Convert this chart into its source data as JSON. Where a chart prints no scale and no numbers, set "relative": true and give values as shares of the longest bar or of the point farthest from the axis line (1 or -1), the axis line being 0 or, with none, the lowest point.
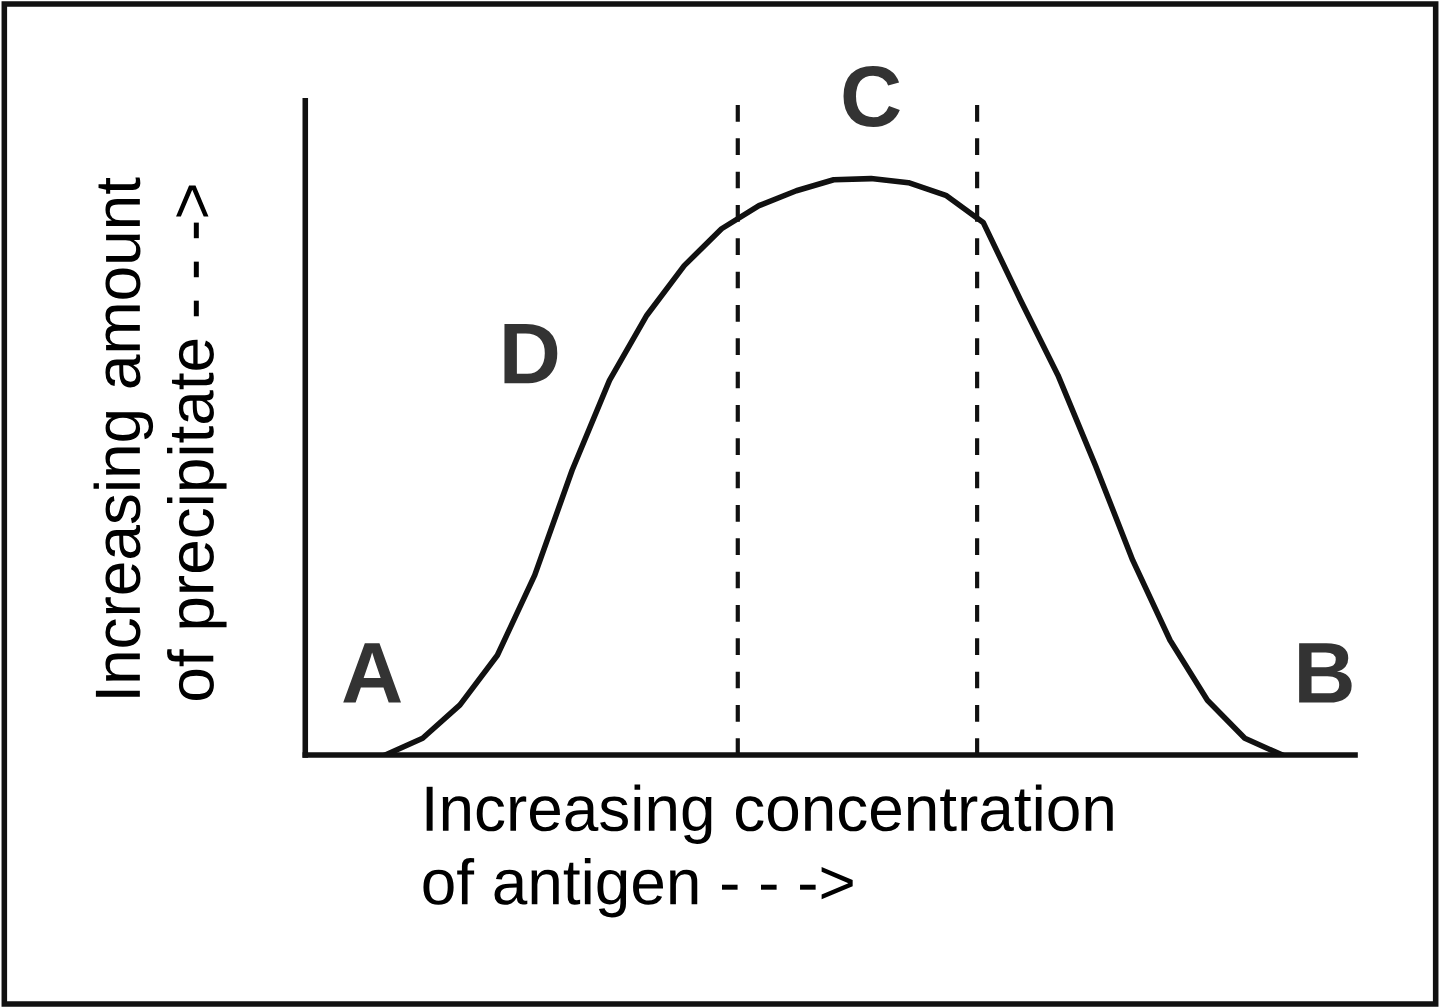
{
  "chart_data": {
    "type": "line",
    "relative": true,
    "xlabel": "Increasing concentration\nof antigen - - ->",
    "ylabel": "Increasing amount\nof precipitate - - ->",
    "categories": [
      null,
      null,
      null,
      null,
      null,
      null,
      null,
      null,
      null,
      null,
      null,
      null,
      null,
      null,
      null,
      null,
      null,
      null,
      null,
      null,
      null,
      null,
      null,
      null,
      null
    ],
    "series": [
      {
        "color": "#111111",
        "values": [
          0,
          0.029,
          0.087,
          0.173,
          0.312,
          0.494,
          0.65,
          0.763,
          0.849,
          0.913,
          0.953,
          0.979,
          0.998,
          1,
          0.993,
          0.971,
          0.924,
          0.789,
          0.659,
          0.503,
          0.338,
          0.199,
          0.095,
          0.029,
          0
        ]
      }
    ],
    "annotations": [
      "A",
      "B",
      "C",
      "D"
    ],
    "legend": false,
    "marker": "none",
    "line_style": "solid"
  }
}
